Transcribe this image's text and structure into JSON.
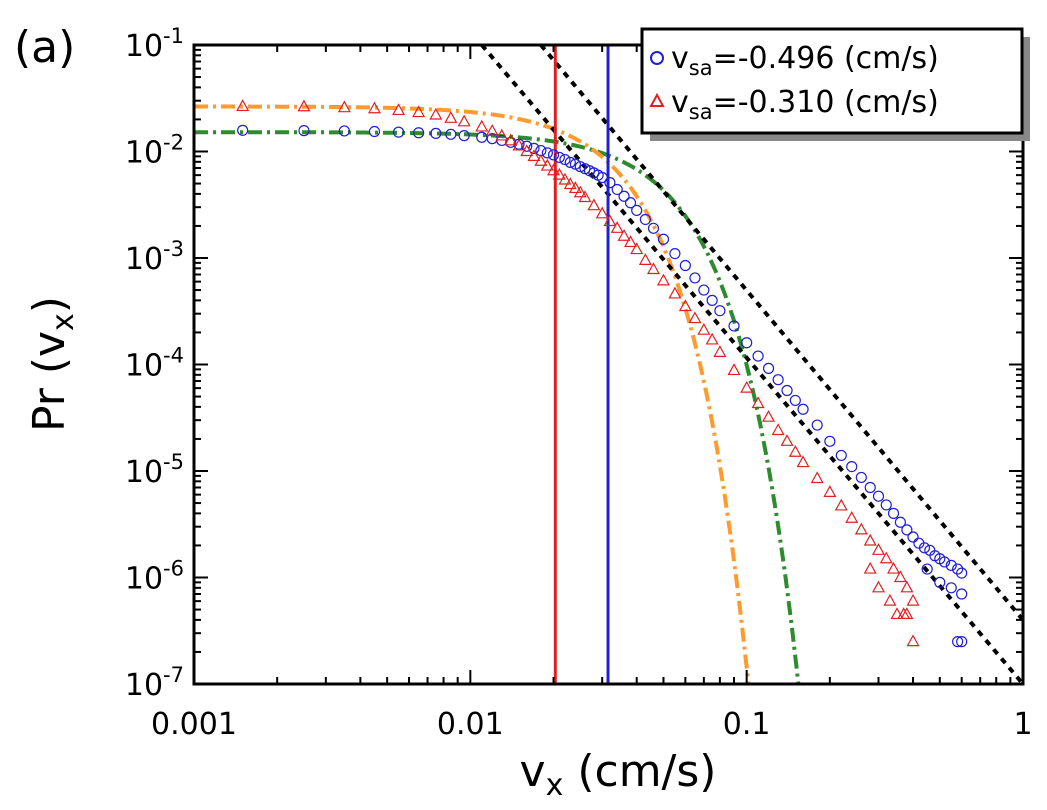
{
  "panel_label": "(a)",
  "chart_data": {
    "type": "scatter",
    "xscale": "log",
    "yscale": "log",
    "xlim": [
      0.001,
      1
    ],
    "ylim": [
      1e-07,
      0.1
    ],
    "xlabel": {
      "main": "v",
      "sub": "x",
      "rest": " (cm/s)"
    },
    "ylabel": {
      "main": "Pr (v",
      "sub": "x",
      "rest": ")"
    },
    "x_ticks": [
      {
        "value": 0.001,
        "label": "0.001"
      },
      {
        "value": 0.01,
        "label": "0.01"
      },
      {
        "value": 0.1,
        "label": "0.1"
      },
      {
        "value": 1,
        "label": "1"
      }
    ],
    "y_ticks": [
      {
        "value": 1e-07,
        "base": "10",
        "exp": "-7"
      },
      {
        "value": 1e-06,
        "base": "10",
        "exp": "-6"
      },
      {
        "value": 1e-05,
        "base": "10",
        "exp": "-5"
      },
      {
        "value": 0.0001,
        "base": "10",
        "exp": "-4"
      },
      {
        "value": 0.001,
        "base": "10",
        "exp": "-3"
      },
      {
        "value": 0.01,
        "base": "10",
        "exp": "-2"
      },
      {
        "value": 0.1,
        "base": "10",
        "exp": "-1"
      }
    ],
    "legend": {
      "position": "top-right",
      "entries": [
        {
          "main": "v",
          "sub": "sa",
          "rest": "=-0.496 (cm/s)",
          "marker": "circle",
          "color": "#1f1fd6"
        },
        {
          "main": "v",
          "sub": "sa",
          "rest": "=-0.310 (cm/s)",
          "marker": "triangle",
          "color": "#e02020"
        }
      ]
    },
    "series": [
      {
        "name": "vsa=-0.496 (cm/s)",
        "marker": "circle",
        "color": "#1f1fd6",
        "points": [
          [
            0.0015,
            0.0158
          ],
          [
            0.0025,
            0.0157
          ],
          [
            0.0035,
            0.0156
          ],
          [
            0.0045,
            0.0154
          ],
          [
            0.0055,
            0.0152
          ],
          [
            0.0065,
            0.015
          ],
          [
            0.0075,
            0.0148
          ],
          [
            0.0085,
            0.0145
          ],
          [
            0.0095,
            0.0141
          ],
          [
            0.011,
            0.0136
          ],
          [
            0.012,
            0.0132
          ],
          [
            0.013,
            0.0127
          ],
          [
            0.014,
            0.0122
          ],
          [
            0.015,
            0.0117
          ],
          [
            0.016,
            0.0112
          ],
          [
            0.017,
            0.0107
          ],
          [
            0.018,
            0.0102
          ],
          [
            0.019,
            0.0097
          ],
          [
            0.02,
            0.0093
          ],
          [
            0.021,
            0.0088
          ],
          [
            0.022,
            0.0084
          ],
          [
            0.023,
            0.0079
          ],
          [
            0.024,
            0.0076
          ],
          [
            0.025,
            0.0072
          ],
          [
            0.026,
            0.0069
          ],
          [
            0.027,
            0.0066
          ],
          [
            0.028,
            0.0063
          ],
          [
            0.029,
            0.006
          ],
          [
            0.03,
            0.0057
          ],
          [
            0.032,
            0.0051
          ],
          [
            0.034,
            0.0044
          ],
          [
            0.036,
            0.0038
          ],
          [
            0.038,
            0.0033
          ],
          [
            0.04,
            0.0028
          ],
          [
            0.043,
            0.0023
          ],
          [
            0.046,
            0.0019
          ],
          [
            0.05,
            0.0015
          ],
          [
            0.055,
            0.0011
          ],
          [
            0.06,
            0.00085
          ],
          [
            0.065,
            0.00065
          ],
          [
            0.07,
            0.0005
          ],
          [
            0.075,
            0.0004
          ],
          [
            0.08,
            0.00032
          ],
          [
            0.09,
            0.00023
          ],
          [
            0.1,
            0.00016
          ],
          [
            0.11,
            0.00012
          ],
          [
            0.12,
            9.2e-05
          ],
          [
            0.13,
            7.2e-05
          ],
          [
            0.14,
            5.7e-05
          ],
          [
            0.15,
            4.6e-05
          ],
          [
            0.16,
            3.8e-05
          ],
          [
            0.18,
            2.7e-05
          ],
          [
            0.2,
            1.9e-05
          ],
          [
            0.22,
            1.4e-05
          ],
          [
            0.24,
            1.1e-05
          ],
          [
            0.26,
            8.7e-06
          ],
          [
            0.28,
            7e-06
          ],
          [
            0.3,
            5.8e-06
          ],
          [
            0.32,
            4.8e-06
          ],
          [
            0.34,
            4e-06
          ],
          [
            0.36,
            3.3e-06
          ],
          [
            0.38,
            2.8e-06
          ],
          [
            0.4,
            2.4e-06
          ],
          [
            0.42,
            2.1e-06
          ],
          [
            0.44,
            1.9e-06
          ],
          [
            0.46,
            1.8e-06
          ],
          [
            0.48,
            1.6e-06
          ],
          [
            0.5,
            1.5e-06
          ],
          [
            0.52,
            1.4e-06
          ],
          [
            0.55,
            1.3e-06
          ],
          [
            0.58,
            1.2e-06
          ],
          [
            0.6,
            1.1e-06
          ],
          [
            0.45,
            1.2e-06
          ],
          [
            0.5,
            9e-07
          ],
          [
            0.55,
            8e-07
          ],
          [
            0.6,
            7e-07
          ],
          [
            0.58,
            2.5e-07
          ],
          [
            0.6,
            2.5e-07
          ]
        ]
      },
      {
        "name": "vsa=-0.310 (cm/s)",
        "marker": "triangle",
        "color": "#e02020",
        "points": [
          [
            0.0015,
            0.0265
          ],
          [
            0.0025,
            0.0263
          ],
          [
            0.0035,
            0.0258
          ],
          [
            0.0045,
            0.0252
          ],
          [
            0.0055,
            0.0243
          ],
          [
            0.0065,
            0.0232
          ],
          [
            0.0075,
            0.022
          ],
          [
            0.0085,
            0.0205
          ],
          [
            0.0095,
            0.019
          ],
          [
            0.011,
            0.017
          ],
          [
            0.012,
            0.0155
          ],
          [
            0.013,
            0.014
          ],
          [
            0.014,
            0.0126
          ],
          [
            0.015,
            0.0113
          ],
          [
            0.016,
            0.01
          ],
          [
            0.017,
            0.009
          ],
          [
            0.018,
            0.0081
          ],
          [
            0.019,
            0.0073
          ],
          [
            0.02,
            0.0066
          ],
          [
            0.021,
            0.006
          ],
          [
            0.022,
            0.0054
          ],
          [
            0.023,
            0.0049
          ],
          [
            0.024,
            0.0045
          ],
          [
            0.025,
            0.0041
          ],
          [
            0.026,
            0.0037
          ],
          [
            0.028,
            0.0031
          ],
          [
            0.03,
            0.0026
          ],
          [
            0.032,
            0.0022
          ],
          [
            0.034,
            0.0019
          ],
          [
            0.036,
            0.0016
          ],
          [
            0.038,
            0.0014
          ],
          [
            0.04,
            0.0012
          ],
          [
            0.043,
            0.00095
          ],
          [
            0.046,
            0.00078
          ],
          [
            0.05,
            0.00061
          ],
          [
            0.055,
            0.00046
          ],
          [
            0.06,
            0.00035
          ],
          [
            0.065,
            0.00027
          ],
          [
            0.07,
            0.00021
          ],
          [
            0.075,
            0.00017
          ],
          [
            0.08,
            0.00013
          ],
          [
            0.09,
            8.8e-05
          ],
          [
            0.1,
            6e-05
          ],
          [
            0.11,
            4.3e-05
          ],
          [
            0.12,
            3.2e-05
          ],
          [
            0.13,
            2.4e-05
          ],
          [
            0.14,
            1.9e-05
          ],
          [
            0.15,
            1.5e-05
          ],
          [
            0.16,
            1.2e-05
          ],
          [
            0.18,
            8.5e-06
          ],
          [
            0.2,
            6.3e-06
          ],
          [
            0.22,
            4.7e-06
          ],
          [
            0.24,
            3.6e-06
          ],
          [
            0.26,
            2.8e-06
          ],
          [
            0.28,
            2.2e-06
          ],
          [
            0.3,
            1.8e-06
          ],
          [
            0.32,
            1.5e-06
          ],
          [
            0.34,
            1.2e-06
          ],
          [
            0.36,
            1e-06
          ],
          [
            0.38,
            8e-07
          ],
          [
            0.4,
            6e-07
          ],
          [
            0.28,
            1.2e-06
          ],
          [
            0.3,
            8e-07
          ],
          [
            0.33,
            6e-07
          ],
          [
            0.35,
            4.5e-07
          ],
          [
            0.37,
            4.5e-07
          ],
          [
            0.38,
            4.5e-07
          ],
          [
            0.4,
            2.5e-07
          ]
        ]
      }
    ],
    "fits": [
      {
        "type": "gaussian",
        "style": "dash-dot",
        "color": "#2e8b2e",
        "amplitude": 0.0152,
        "sigma": 0.0315
      },
      {
        "type": "gaussian",
        "style": "dash-dot",
        "color": "#ff9a2e",
        "amplitude": 0.0265,
        "sigma": 0.0203
      },
      {
        "type": "power-law",
        "style": "dashed",
        "color": "#000000",
        "x_range": [
          0.018,
          1
        ],
        "points": [
          [
            0.018,
            0.1
          ],
          [
            1,
            4e-07
          ]
        ]
      },
      {
        "type": "power-law",
        "style": "dashed",
        "color": "#000000",
        "x_range": [
          0.011,
          1
        ],
        "points": [
          [
            0.011,
            0.1
          ],
          [
            1,
            1e-07
          ]
        ]
      }
    ],
    "vertical_lines": [
      {
        "x": 0.0203,
        "color": "#e02020"
      },
      {
        "x": 0.0315,
        "color": "#1f1fd6"
      }
    ]
  }
}
